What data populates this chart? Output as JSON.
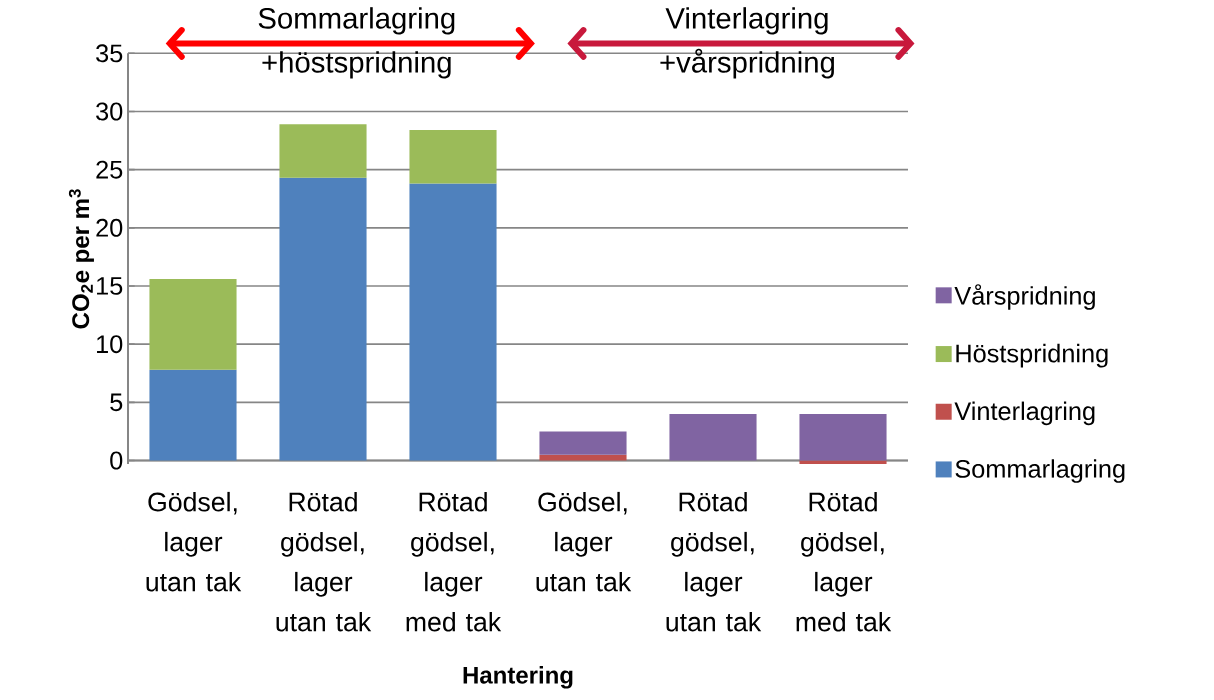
{
  "chart_data": {
    "type": "bar",
    "stacked": true,
    "categories": [
      "Gödsel, lager utan tak",
      "Rötad gödsel, lager utan tak",
      "Rötad gödsel, lager med tak",
      "Gödsel, lager utan tak",
      "Rötad gödsel, lager utan tak",
      "Rötad gödsel, lager med tak"
    ],
    "series": [
      {
        "name": "Sommarlagring",
        "color": "#4f81bd",
        "values": [
          7.8,
          24.3,
          23.8,
          null,
          null,
          null
        ]
      },
      {
        "name": "Vinterlagring",
        "color": "#c0504d",
        "values": [
          null,
          null,
          null,
          0.5,
          null,
          -0.3
        ]
      },
      {
        "name": "Höstspridning",
        "color": "#9bbb59",
        "values": [
          7.8,
          4.6,
          4.6,
          null,
          null,
          null
        ]
      },
      {
        "name": "Vårspridning",
        "color": "#8064a2",
        "values": [
          null,
          null,
          null,
          2.0,
          4.0,
          4.0
        ]
      }
    ],
    "ylim": [
      -0.3,
      35
    ],
    "yticks": [
      0,
      5,
      10,
      15,
      20,
      25,
      30,
      35
    ],
    "xlabel": "Hantering",
    "ylabel": "CO$_{2}$e per m$^{3}$",
    "annotations": [
      "Sommarlagring +höstspridning",
      "Vinterlagring +vårspridning"
    ],
    "grid": "y",
    "legend": "right"
  }
}
